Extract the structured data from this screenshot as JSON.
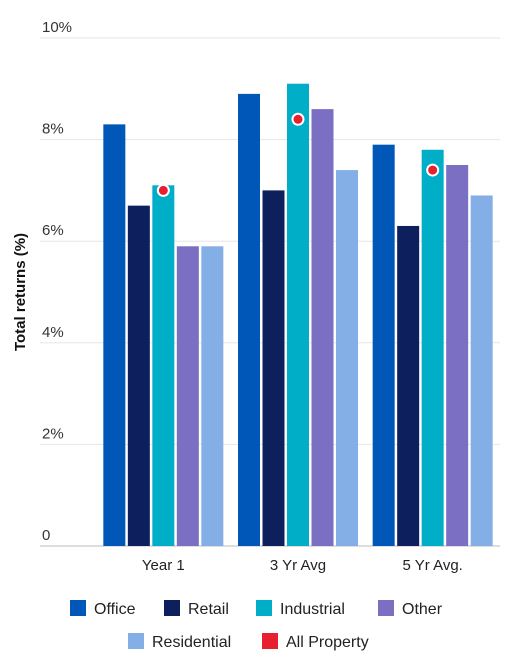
{
  "chart_data": {
    "type": "bar",
    "ylabel": "Total returns (%)",
    "ylim": [
      0,
      10
    ],
    "yticks": [
      {
        "value": 0,
        "label": "0"
      },
      {
        "value": 2,
        "label": "2%"
      },
      {
        "value": 4,
        "label": "4%"
      },
      {
        "value": 6,
        "label": "6%"
      },
      {
        "value": 8,
        "label": "8%"
      },
      {
        "value": 10,
        "label": "10%"
      }
    ],
    "grid": true,
    "legend_position": "bottom",
    "categories": [
      "Year 1",
      "3 Yr Avg",
      "5 Yr Avg."
    ],
    "series": [
      {
        "name": "Office",
        "color": "#0057b8",
        "values": [
          8.3,
          8.9,
          7.9
        ]
      },
      {
        "name": "Retail",
        "color": "#0d1f5c",
        "values": [
          6.7,
          7.0,
          6.3
        ]
      },
      {
        "name": "Industrial",
        "color": "#00aec7",
        "values": [
          7.1,
          9.1,
          7.8
        ]
      },
      {
        "name": "Other",
        "color": "#7a6fc2",
        "values": [
          5.9,
          8.6,
          7.5
        ]
      },
      {
        "name": "Residential",
        "color": "#84aee6",
        "values": [
          5.9,
          7.4,
          6.9
        ]
      }
    ],
    "markers": {
      "name": "All Property",
      "color": "#e8202e",
      "values": [
        7.0,
        8.4,
        7.4
      ]
    }
  }
}
